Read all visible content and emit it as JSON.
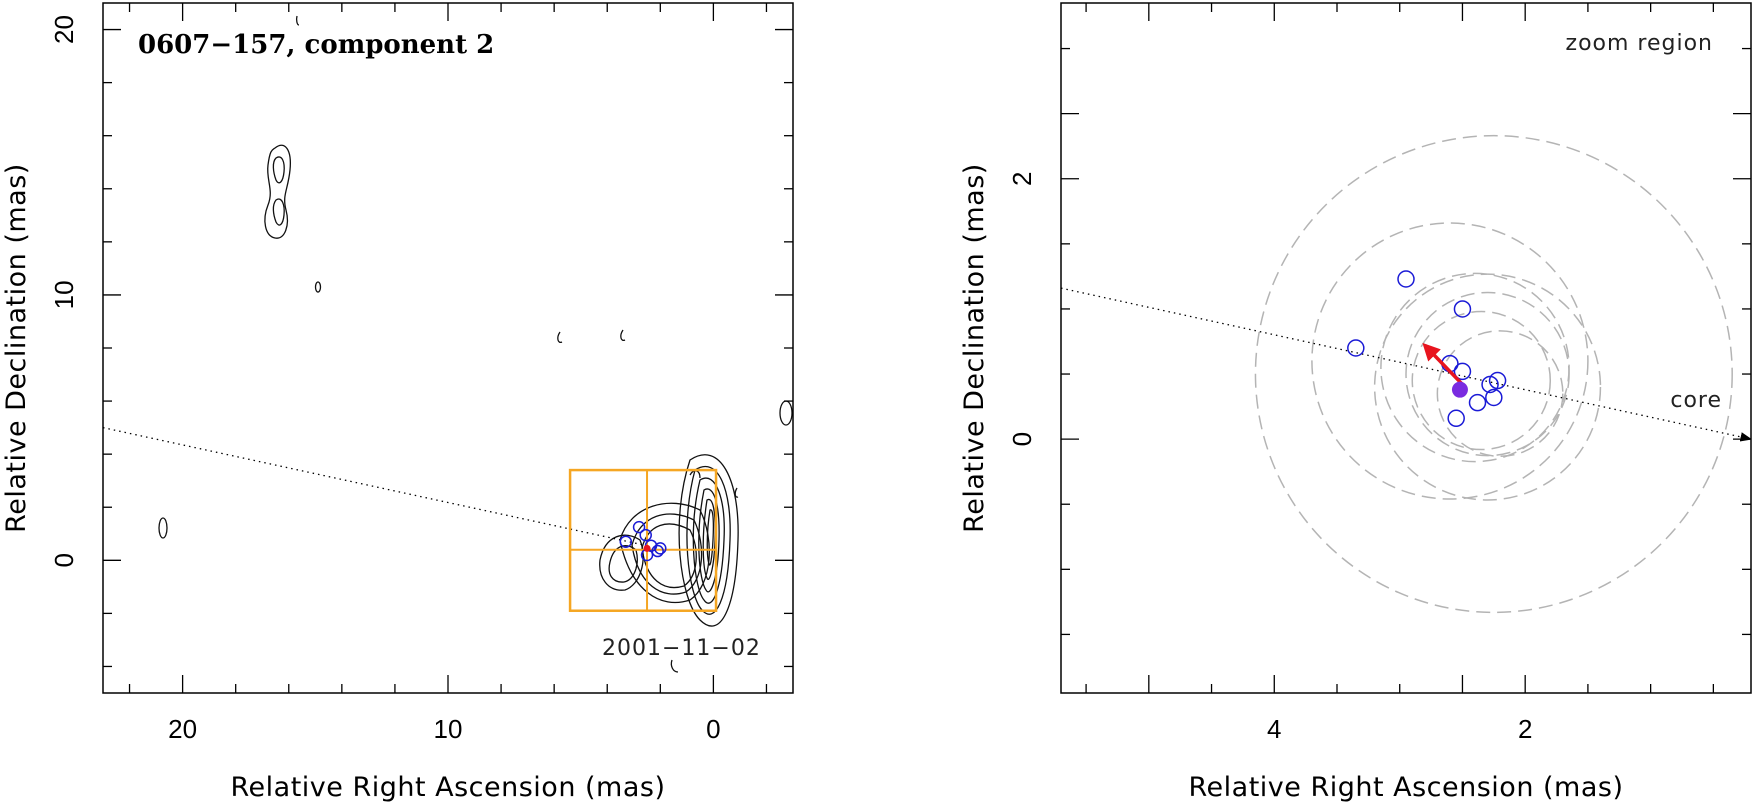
{
  "colors": {
    "frame": "#000000",
    "contour": "#111111",
    "box": "#f5a623",
    "obs_circle": "#1a1ad6",
    "fit_point": "#7a2be0",
    "vector": "#e8141e",
    "error_circle": "#b4b4b4"
  },
  "chart_data": [
    {
      "type": "scatter",
      "title": "0607−157, component 2",
      "xlabel": "Relative Right Ascension (mas)",
      "ylabel": "Relative Declination (mas)",
      "xlim": [
        23,
        -3
      ],
      "ylim": [
        -5,
        21
      ],
      "xticks": [
        20,
        10,
        0
      ],
      "yticks": [
        0,
        10,
        20
      ],
      "xtick_labels": [
        "20",
        "10",
        "0"
      ],
      "ytick_labels": [
        "0",
        "10",
        "20"
      ],
      "grid": false,
      "epoch_label": "2001−11−02",
      "zoom_box": {
        "x": [
          5.4,
          -0.1
        ],
        "y": [
          -1.9,
          3.4
        ],
        "cross_x": 2.5,
        "cross_y": 0.4
      },
      "trajectory": {
        "from": [
          23,
          5.0
        ],
        "to": [
          2.5,
          0.55
        ]
      },
      "components": [
        {
          "x": 3.3,
          "y": 0.7
        },
        {
          "x": 2.8,
          "y": 1.25
        },
        {
          "x": 2.55,
          "y": 0.95
        },
        {
          "x": 2.5,
          "y": 0.2
        },
        {
          "x": 2.35,
          "y": 0.55
        },
        {
          "x": 2.1,
          "y": 0.35
        },
        {
          "x": 2.0,
          "y": 0.45
        }
      ],
      "fitted_position": {
        "x": 2.5,
        "y": 0.45
      }
    },
    {
      "type": "scatter",
      "title": "zoom region",
      "xlabel": "Relative Right Ascension (mas)",
      "ylabel": "Relative Declination (mas)",
      "xlim": [
        5.7,
        0.2
      ],
      "ylim": [
        -1.95,
        3.35
      ],
      "xticks": [
        4,
        2
      ],
      "yticks": [
        0,
        2
      ],
      "xtick_labels": [
        "4",
        "2"
      ],
      "ytick_labels": [
        "0",
        "2"
      ],
      "grid": false,
      "core_label": "core",
      "trajectory": {
        "from": [
          5.7,
          1.16
        ],
        "to": [
          0.2,
          0.0
        ]
      },
      "components": [
        {
          "x": 3.35,
          "y": 0.7
        },
        {
          "x": 2.95,
          "y": 1.23
        },
        {
          "x": 2.5,
          "y": 1.0
        },
        {
          "x": 2.6,
          "y": 0.58
        },
        {
          "x": 2.5,
          "y": 0.52
        },
        {
          "x": 2.28,
          "y": 0.42
        },
        {
          "x": 2.22,
          "y": 0.45
        },
        {
          "x": 2.25,
          "y": 0.32
        },
        {
          "x": 2.38,
          "y": 0.28
        },
        {
          "x": 2.55,
          "y": 0.16
        }
      ],
      "fitted_position": {
        "x": 2.52,
        "y": 0.38
      },
      "velocity_vector": {
        "from": [
          2.48,
          0.4
        ],
        "to": [
          2.8,
          0.72
        ]
      },
      "error_circles": [
        {
          "x": 2.25,
          "y": 0.5,
          "r": 1.9
        },
        {
          "x": 2.6,
          "y": 0.6,
          "r": 1.1
        },
        {
          "x": 2.3,
          "y": 0.4,
          "r": 0.9
        },
        {
          "x": 2.4,
          "y": 0.55,
          "r": 0.75
        },
        {
          "x": 2.35,
          "y": 0.45,
          "r": 0.55
        },
        {
          "x": 2.3,
          "y": 0.5,
          "r": 0.65
        },
        {
          "x": 2.2,
          "y": 0.35,
          "r": 0.5
        }
      ]
    }
  ]
}
